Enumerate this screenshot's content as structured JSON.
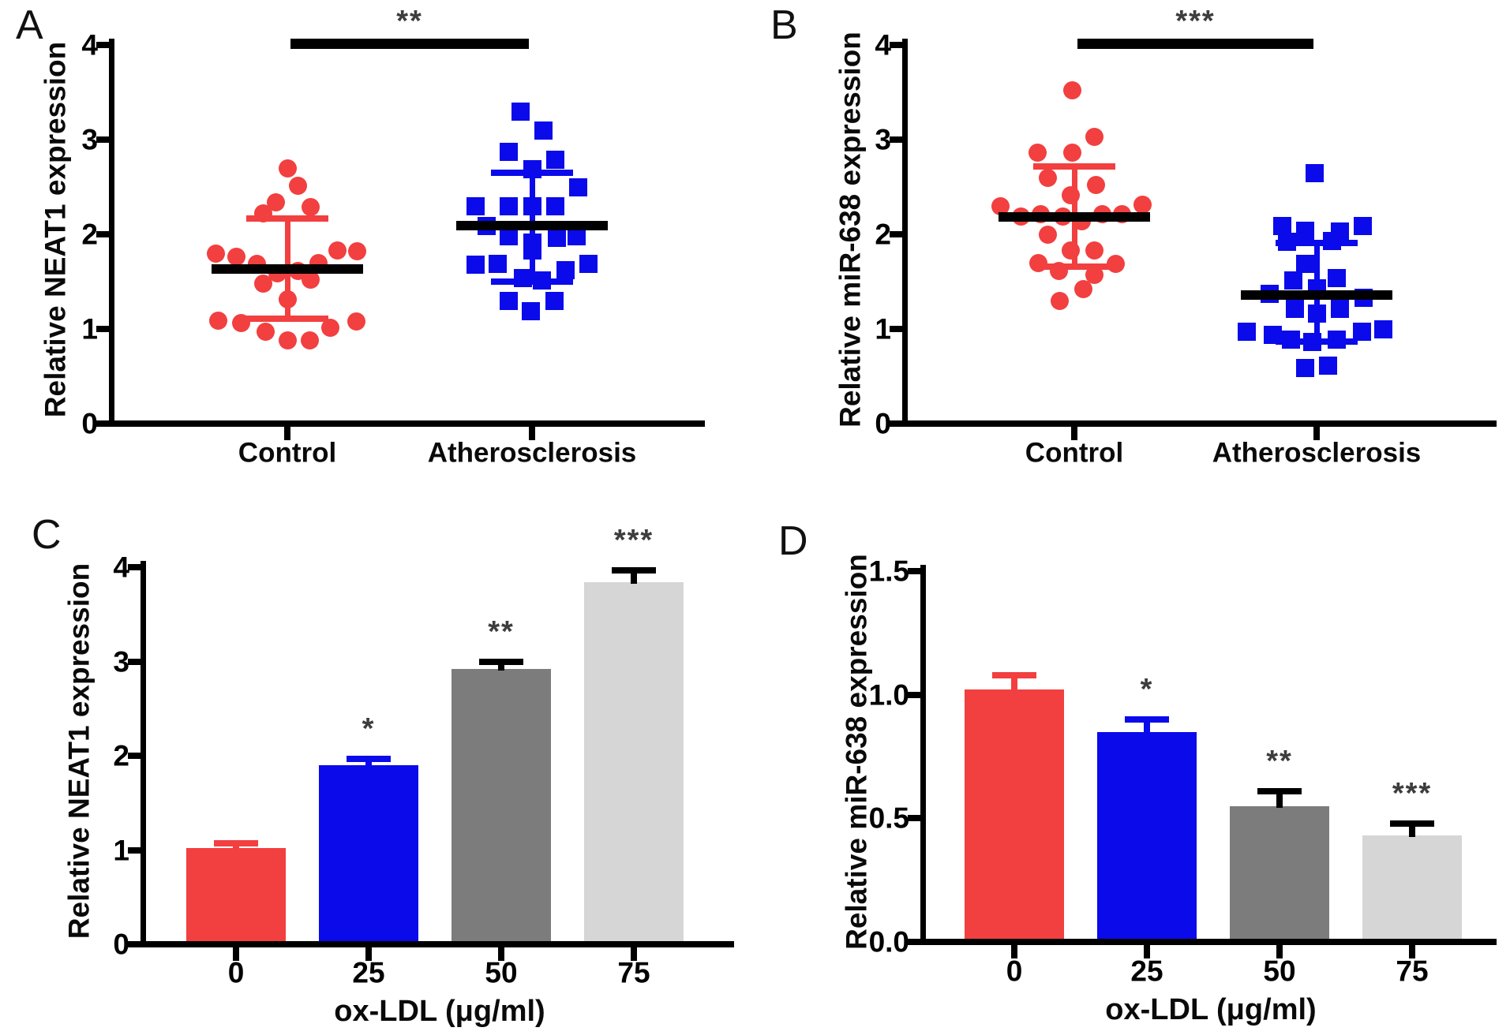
{
  "figure_background": "#ffffff",
  "accent_colors": {
    "red": "#f23f3f",
    "blue": "#0a0aeb",
    "dark_gray": "#7c7c7c",
    "light_gray": "#d6d6d6",
    "axis_black": "#000000",
    "star_gray": "#3d3d3d"
  },
  "chart_data": [
    {
      "id": "A",
      "panel_label": "A",
      "type": "scatter",
      "ylabel": "Relative NEAT1 expression",
      "ylim": [
        0,
        4
      ],
      "yticks": [
        "0",
        "1",
        "2",
        "3",
        "4"
      ],
      "significance": "**",
      "legend_position": "none",
      "grid": false,
      "groups": [
        {
          "name": "Control",
          "marker": "circle",
          "color": "#f23f3f",
          "mean": 1.63,
          "sd_top": 2.17,
          "sd_bottom": 1.11,
          "points": [
            [
              0,
              2.7
            ],
            [
              13,
              2.51
            ],
            [
              -15,
              2.34
            ],
            [
              -31,
              2.22
            ],
            [
              29,
              2.29
            ],
            [
              -91,
              1.8
            ],
            [
              -65,
              1.76
            ],
            [
              -39,
              1.69
            ],
            [
              -13,
              1.59
            ],
            [
              13,
              1.61
            ],
            [
              -31,
              1.48
            ],
            [
              29,
              1.52
            ],
            [
              39,
              1.7
            ],
            [
              63,
              1.83
            ],
            [
              88,
              1.82
            ],
            [
              0,
              1.31
            ],
            [
              -88,
              1.09
            ],
            [
              -59,
              1.06
            ],
            [
              -28,
              0.97
            ],
            [
              0,
              0.88
            ],
            [
              28,
              0.88
            ],
            [
              54,
              1.01
            ],
            [
              87,
              1.08
            ]
          ]
        },
        {
          "name": "Atherosclerosis",
          "marker": "square",
          "color": "#0a0aeb",
          "mean": 2.09,
          "sd_top": 2.65,
          "sd_bottom": 1.5,
          "points": [
            [
              -15,
              3.3
            ],
            [
              14,
              3.1
            ],
            [
              -30,
              2.87
            ],
            [
              29,
              2.79
            ],
            [
              0,
              2.69
            ],
            [
              58,
              2.5
            ],
            [
              -72,
              2.3
            ],
            [
              -30,
              2.3
            ],
            [
              0,
              2.3
            ],
            [
              29,
              2.3
            ],
            [
              -58,
              2.09
            ],
            [
              -30,
              1.98
            ],
            [
              0,
              1.91
            ],
            [
              31,
              1.96
            ],
            [
              56,
              1.98
            ],
            [
              -72,
              1.68
            ],
            [
              -44,
              1.69
            ],
            [
              0,
              1.83
            ],
            [
              42,
              1.62
            ],
            [
              71,
              1.69
            ],
            [
              -12,
              1.54
            ],
            [
              12,
              1.51
            ],
            [
              -30,
              1.3
            ],
            [
              -2,
              1.19
            ],
            [
              28,
              1.3
            ]
          ]
        }
      ]
    },
    {
      "id": "B",
      "panel_label": "B",
      "type": "scatter",
      "ylabel": "Relative miR-638 expression",
      "ylim": [
        0,
        4
      ],
      "yticks": [
        "0",
        "1",
        "2",
        "3",
        "4"
      ],
      "significance": "***",
      "legend_position": "none",
      "grid": false,
      "groups": [
        {
          "name": "Control",
          "marker": "circle",
          "color": "#f23f3f",
          "mean": 2.18,
          "sd_top": 2.72,
          "sd_bottom": 1.66,
          "points": [
            [
              -3,
              3.52
            ],
            [
              25,
              3.03
            ],
            [
              -47,
              2.86
            ],
            [
              -3,
              2.86
            ],
            [
              -34,
              2.6
            ],
            [
              27,
              2.52
            ],
            [
              -5,
              2.41
            ],
            [
              -94,
              2.3
            ],
            [
              86,
              2.31
            ],
            [
              -68,
              2.19
            ],
            [
              -43,
              2.21
            ],
            [
              -15,
              2.19
            ],
            [
              9,
              2.14
            ],
            [
              35,
              2.21
            ],
            [
              60,
              2.21
            ],
            [
              -34,
              2.0
            ],
            [
              -5,
              1.83
            ],
            [
              25,
              1.83
            ],
            [
              -46,
              1.7
            ],
            [
              -20,
              1.61
            ],
            [
              25,
              1.57
            ],
            [
              52,
              1.69
            ],
            [
              11,
              1.42
            ],
            [
              -19,
              1.3
            ]
          ]
        },
        {
          "name": "Atherosclerosis",
          "marker": "square",
          "color": "#0a0aeb",
          "mean": 1.36,
          "sd_top": 1.91,
          "sd_bottom": 0.87,
          "points": [
            [
              -3,
              2.65
            ],
            [
              -44,
              2.09
            ],
            [
              -15,
              2.04
            ],
            [
              29,
              2.03
            ],
            [
              58,
              2.09
            ],
            [
              -38,
              1.92
            ],
            [
              19,
              1.93
            ],
            [
              -15,
              1.69
            ],
            [
              -30,
              1.51
            ],
            [
              25,
              1.54
            ],
            [
              0,
              1.43
            ],
            [
              -60,
              1.37
            ],
            [
              59,
              1.33
            ],
            [
              -28,
              1.21
            ],
            [
              29,
              1.21
            ],
            [
              0,
              1.16
            ],
            [
              -89,
              0.97
            ],
            [
              -56,
              0.94
            ],
            [
              -33,
              0.89
            ],
            [
              -6,
              0.86
            ],
            [
              25,
              0.89
            ],
            [
              57,
              0.97
            ],
            [
              84,
              1.0
            ],
            [
              -15,
              0.59
            ],
            [
              14,
              0.61
            ]
          ]
        }
      ]
    },
    {
      "id": "C",
      "panel_label": "C",
      "type": "bar",
      "ylabel": "Relative NEAT1 expression",
      "xlabel": "ox-LDL (μg/ml)",
      "ylim": [
        0,
        4
      ],
      "yticks": [
        "0",
        "1",
        "2",
        "3",
        "4"
      ],
      "categories": [
        "0",
        "25",
        "50",
        "75"
      ],
      "values": [
        1.02,
        1.9,
        2.92,
        3.84
      ],
      "errors_top": [
        1.07,
        1.97,
        3.0,
        3.97
      ],
      "significance": [
        "",
        "*",
        "**",
        "***"
      ],
      "bar_colors": [
        "#f23f3f",
        "#0a0aeb",
        "#7c7c7c",
        "#d6d6d6"
      ],
      "error_colors": [
        "#f23f3f",
        "#0a0aeb",
        "#000000",
        "#000000"
      ],
      "legend_position": "none",
      "grid": false
    },
    {
      "id": "D",
      "panel_label": "D",
      "type": "bar",
      "ylabel": "Relative miR-638 expression",
      "xlabel": "ox-LDL (μg/ml)",
      "ylim": [
        0,
        1.5
      ],
      "yticks": [
        "0.0",
        "0.5",
        "1.0",
        "1.5"
      ],
      "categories": [
        "0",
        "25",
        "50",
        "75"
      ],
      "values": [
        1.02,
        0.85,
        0.55,
        0.43
      ],
      "errors_top": [
        1.08,
        0.9,
        0.61,
        0.48
      ],
      "significance": [
        "",
        "*",
        "**",
        "***"
      ],
      "bar_colors": [
        "#f23f3f",
        "#0a0aeb",
        "#7c7c7c",
        "#d6d6d6"
      ],
      "error_colors": [
        "#f23f3f",
        "#0a0aeb",
        "#000000",
        "#000000"
      ],
      "legend_position": "none",
      "grid": false
    }
  ]
}
